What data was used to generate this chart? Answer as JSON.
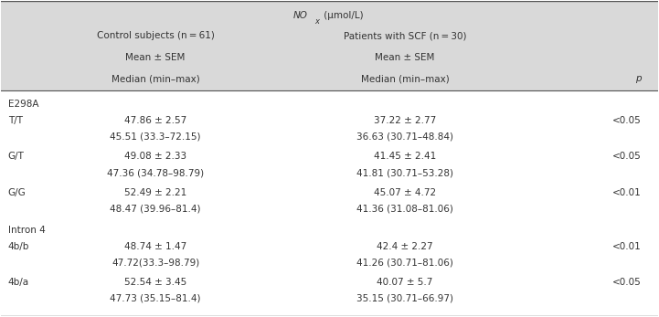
{
  "title_main": "NO",
  "title_sub": "x",
  "title_units": " (μmol/L)",
  "col1_header": [
    "Control subjects (n = 61)",
    "Mean ± SEM",
    "Median (min–max)"
  ],
  "col2_header": [
    "Patients with SCF (n = 30)",
    "Mean ± SEM",
    "Median (min–max)"
  ],
  "col3_header": "p",
  "section1_label": "E298A",
  "section2_label": "Intron 4",
  "rows": [
    {
      "genotype": "T/T",
      "ctrl_mean": "47.86 ± 2.57",
      "ctrl_median": "45.51 (33.3–72.15)",
      "scf_mean": "37.22 ± 2.77",
      "scf_median": "36.63 (30.71–48.84)",
      "p": "<0.05"
    },
    {
      "genotype": "G/T",
      "ctrl_mean": "49.08 ± 2.33",
      "ctrl_median": "47.36 (34.78–98.79)",
      "scf_mean": "41.45 ± 2.41",
      "scf_median": "41.81 (30.71–53.28)",
      "p": "<0.05"
    },
    {
      "genotype": "G/G",
      "ctrl_mean": "52.49 ± 2.21",
      "ctrl_median": "48.47 (39.96–81.4)",
      "scf_mean": "45.07 ± 4.72",
      "scf_median": "41.36 (31.08–81.06)",
      "p": "<0.01"
    },
    {
      "genotype": "4b/b",
      "ctrl_mean": "48.74 ± 1.47",
      "ctrl_median": "47.72(33.3–98.79)",
      "scf_mean": "42.4 ± 2.27",
      "scf_median": "41.26 (30.71–81.06)",
      "p": "<0.01"
    },
    {
      "genotype": "4b/a",
      "ctrl_mean": "52.54 ± 3.45",
      "ctrl_median": "47.73 (35.15–81.4)",
      "scf_mean": "40.07 ± 5.7",
      "scf_median": "35.15 (30.71–66.97)",
      "p": "<0.05"
    }
  ],
  "header_bg": "#d9d9d9",
  "font_size": 7.5,
  "header_font_size": 7.5,
  "text_color": "#333333",
  "line_color": "#555555"
}
